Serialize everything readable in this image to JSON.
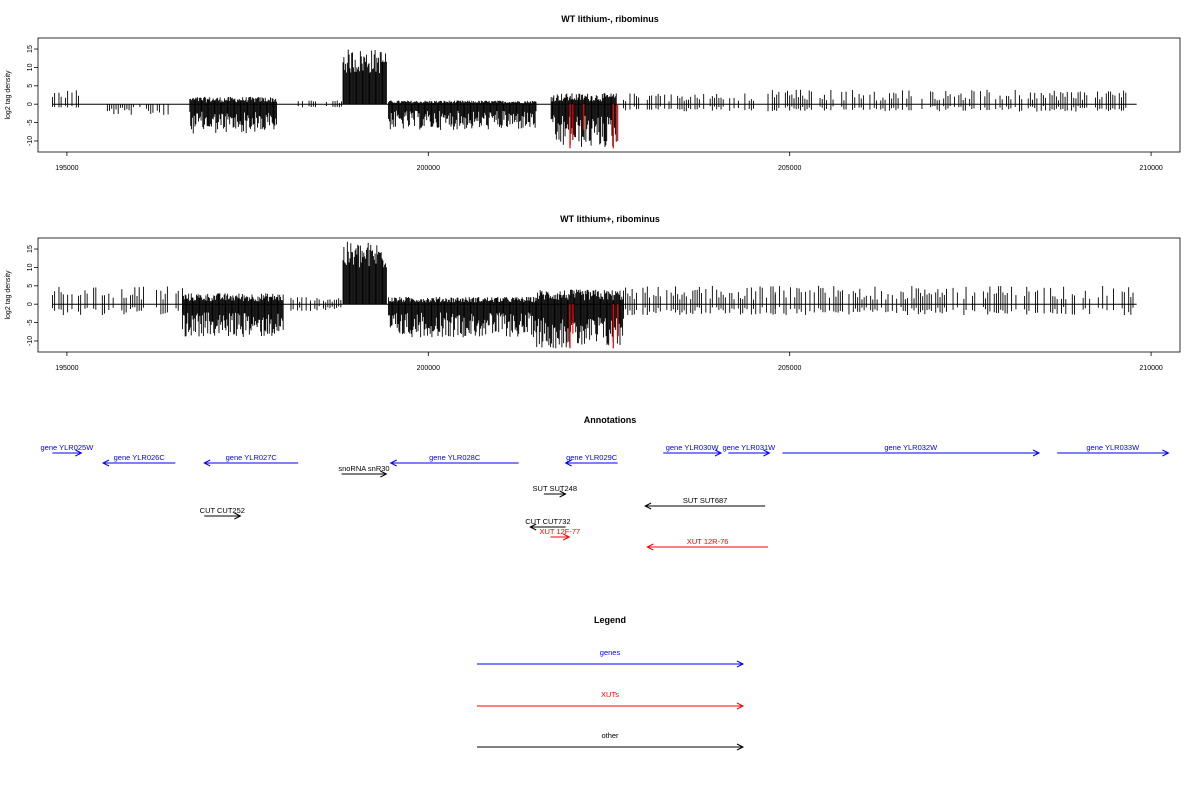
{
  "chart_data": [
    {
      "type": "bar",
      "title": "WT lithium-, ribominus",
      "xlabel": "",
      "ylabel": "log2 tag density",
      "xlim": [
        194600,
        210400
      ],
      "ylim": [
        -13,
        18
      ],
      "xticks": [
        195000,
        200000,
        205000,
        210000
      ],
      "yticks": [
        15,
        10,
        5,
        0,
        -5,
        -10
      ],
      "grid": false,
      "legend": "none",
      "colors": {
        "default": "#000000",
        "highlight": "#ff0000"
      },
      "segments": [
        {
          "x": [
            194800,
            195200
          ],
          "min": -1,
          "max": 4
        },
        {
          "x": [
            195500,
            196400
          ],
          "min": -3,
          "max": 0
        },
        {
          "x": [
            196700,
            197900
          ],
          "min": -8,
          "max": 2
        },
        {
          "x": [
            198200,
            198800
          ],
          "min": -1,
          "max": 1
        },
        {
          "x": [
            198820,
            199420
          ],
          "min": 0,
          "max": 15
        },
        {
          "x": [
            199450,
            201500
          ],
          "min": -7,
          "max": 1
        },
        {
          "x": [
            201700,
            202600
          ],
          "min": -12,
          "max": 3
        },
        {
          "x": [
            202700,
            204600
          ],
          "min": -2,
          "max": 3
        },
        {
          "x": [
            204700,
            209800
          ],
          "min": -2,
          "max": 4
        }
      ],
      "highlights": [
        {
          "x": 201960,
          "value": -12
        },
        {
          "x": 202000,
          "value": -9
        },
        {
          "x": 202150,
          "value": -7
        },
        {
          "x": 202560,
          "value": -12
        },
        {
          "x": 202620,
          "value": -10
        }
      ]
    },
    {
      "type": "bar",
      "title": "WT lithium+, ribominus",
      "xlabel": "",
      "ylabel": "log2 tag density",
      "xlim": [
        194600,
        210400
      ],
      "ylim": [
        -13,
        18
      ],
      "xticks": [
        195000,
        200000,
        205000,
        210000
      ],
      "yticks": [
        15,
        10,
        5,
        0,
        -5,
        -10
      ],
      "grid": false,
      "legend": "none",
      "colors": {
        "default": "#000000",
        "highlight": "#ff0000"
      },
      "segments": [
        {
          "x": [
            194800,
            196600
          ],
          "min": -3,
          "max": 5
        },
        {
          "x": [
            196600,
            198000
          ],
          "min": -9,
          "max": 3
        },
        {
          "x": [
            198100,
            198800
          ],
          "min": -2,
          "max": 2
        },
        {
          "x": [
            198820,
            199420
          ],
          "min": 0,
          "max": 17
        },
        {
          "x": [
            199450,
            201500
          ],
          "min": -9,
          "max": 2
        },
        {
          "x": [
            201500,
            202700
          ],
          "min": -12,
          "max": 4
        },
        {
          "x": [
            202700,
            204800
          ],
          "min": -3,
          "max": 5
        },
        {
          "x": [
            204800,
            209800
          ],
          "min": -3,
          "max": 5
        }
      ],
      "highlights": [
        {
          "x": 201960,
          "value": -12
        },
        {
          "x": 202000,
          "value": -8
        },
        {
          "x": 202560,
          "value": -12
        },
        {
          "x": 202620,
          "value": -9
        }
      ]
    }
  ],
  "annotations": {
    "title": "Annotations",
    "items": [
      {
        "label": "gene YLR025W",
        "color": "#0000ff",
        "start": 194800,
        "end": 195200,
        "dir": "right",
        "row": 0
      },
      {
        "label": "gene YLR026C",
        "color": "#0000ff",
        "start": 195500,
        "end": 196500,
        "dir": "left",
        "row": 1
      },
      {
        "label": "gene YLR027C",
        "color": "#0000ff",
        "start": 196900,
        "end": 198200,
        "dir": "left",
        "row": 1
      },
      {
        "label": "snoRNA snR30",
        "color": "#000000",
        "start": 198800,
        "end": 199420,
        "dir": "right",
        "row": 2
      },
      {
        "label": "gene YLR028C",
        "color": "#0000ff",
        "start": 199480,
        "end": 201250,
        "dir": "left",
        "row": 1
      },
      {
        "label": "gene YLR029C",
        "color": "#0000ff",
        "start": 201900,
        "end": 202620,
        "dir": "left",
        "row": 1
      },
      {
        "label": "gene YLR030W",
        "color": "#0000ff",
        "start": 203250,
        "end": 204050,
        "dir": "right",
        "row": 0
      },
      {
        "label": "gene YLR031W",
        "color": "#0000ff",
        "start": 204150,
        "end": 204720,
        "dir": "right",
        "row": 0
      },
      {
        "label": "gene YLR032W",
        "color": "#0000ff",
        "start": 204900,
        "end": 208450,
        "dir": "right",
        "row": 0
      },
      {
        "label": "gene YLR033W",
        "color": "#0000ff",
        "start": 208700,
        "end": 210240,
        "dir": "right",
        "row": 0
      },
      {
        "label": "SUT SUT248",
        "color": "#000000",
        "start": 201600,
        "end": 201900,
        "dir": "right",
        "row": 4
      },
      {
        "label": "SUT SUT687",
        "color": "#000000",
        "start": 203000,
        "end": 204660,
        "dir": "left",
        "row": 5
      },
      {
        "label": "CUT CUT252",
        "color": "#000000",
        "start": 196900,
        "end": 197400,
        "dir": "right",
        "row": 6
      },
      {
        "label": "CUT CUT732",
        "color": "#000000",
        "start": 201410,
        "end": 201900,
        "dir": "left",
        "row": 7
      },
      {
        "label": "XUT 12F-77",
        "color": "#ff0000",
        "start": 201690,
        "end": 201950,
        "dir": "right",
        "row": 8
      },
      {
        "label": "XUT 12R-76",
        "color": "#ff0000",
        "start": 203030,
        "end": 204700,
        "dir": "left",
        "row": 9
      }
    ]
  },
  "legend": {
    "title": "Legend",
    "items": [
      {
        "label": "genes",
        "color": "#0000ff"
      },
      {
        "label": "XUTs",
        "color": "#ff0000"
      },
      {
        "label": "other",
        "color": "#000000"
      }
    ]
  }
}
